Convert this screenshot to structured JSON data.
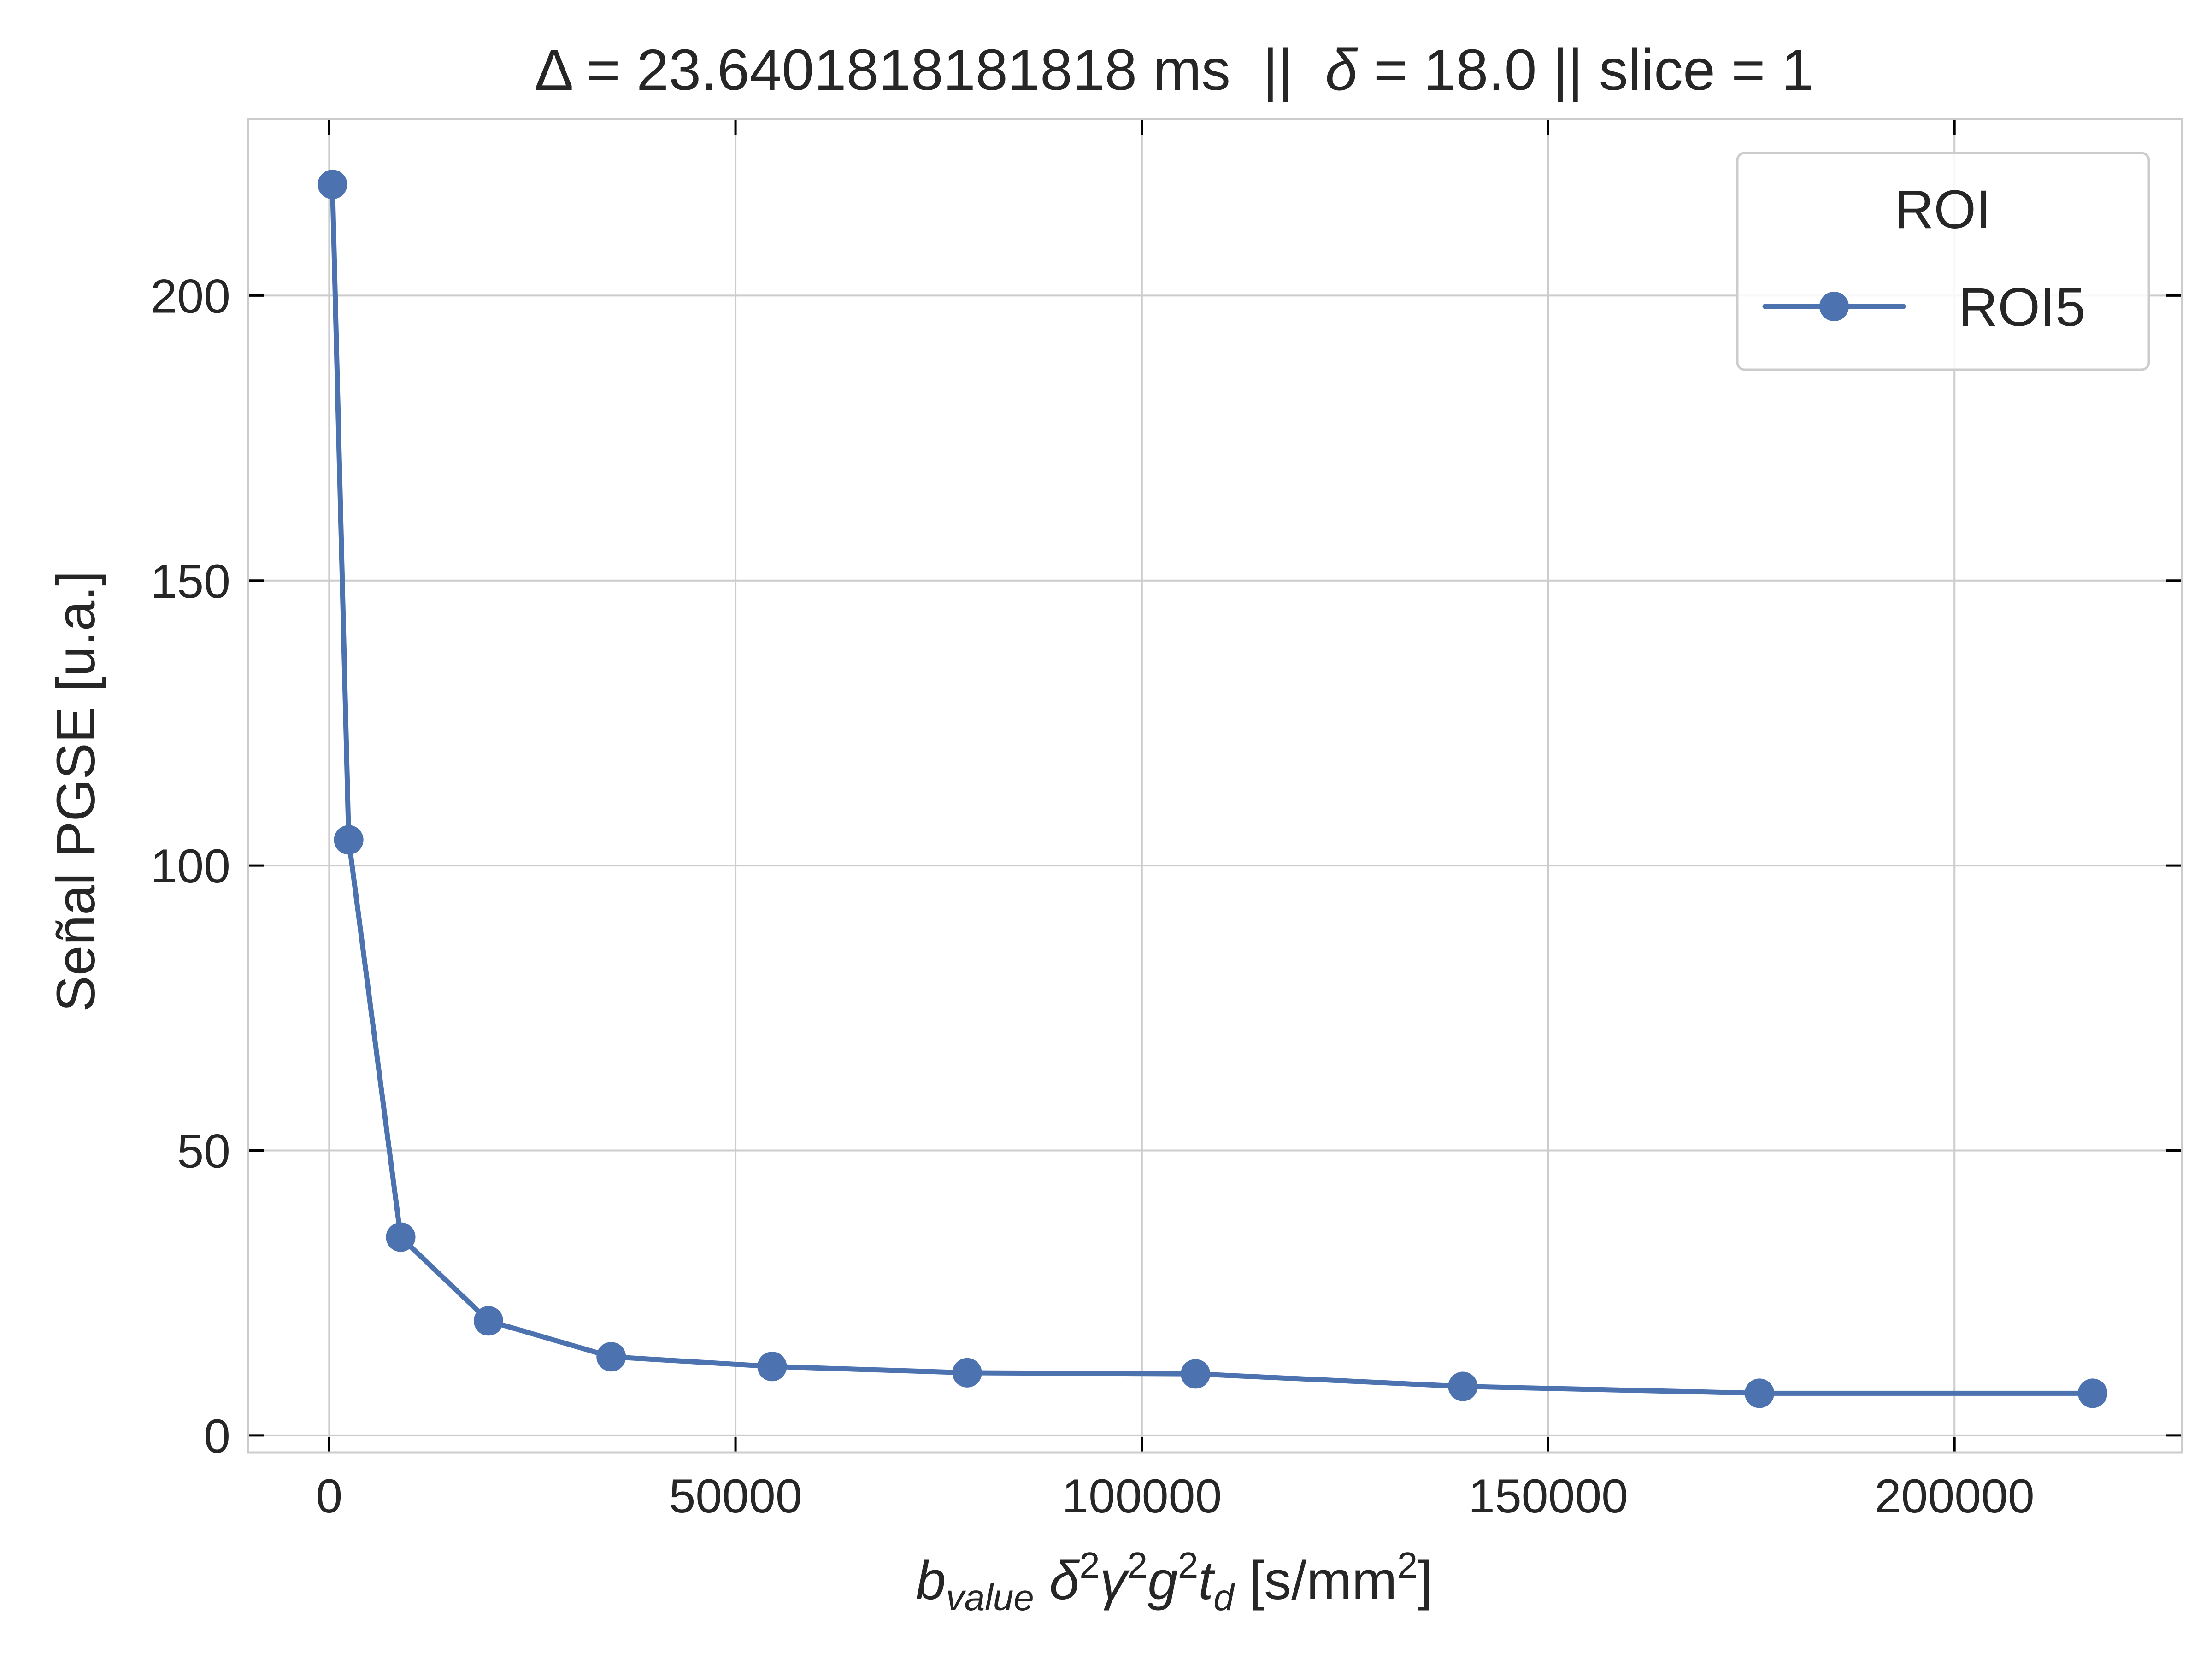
{
  "chart_data": {
    "type": "line",
    "title": "Δ = 23.6401818181818 ms  ||  δ = 18.0 || slice = 1",
    "title_parts": {
      "delta_cap": "Δ",
      "part1": " = 23.6401818181818 ms  ||  ",
      "delta_small": "δ",
      "part2": " = 18.0 || slice = 1"
    },
    "xlabel": "b_value δ²γ²g²t_d [s/mm²]",
    "xlabel_parts": {
      "b": "b",
      "b_sub": "value",
      "delta": "δ",
      "sup1": "2",
      "gamma": "γ",
      "sup2": "2",
      "g": "g",
      "sup3": "2",
      "t": "t",
      "t_sub": "d",
      "units_open": "[s/mm",
      "units_sup": "2",
      "units_close": "]"
    },
    "ylabel": "Señal PGSE [u.a.]",
    "xlim": [
      -10000,
      228000
    ],
    "ylim": [
      -3,
      231
    ],
    "xticks": [
      0,
      50000,
      100000,
      150000,
      200000
    ],
    "xtick_labels": [
      "0",
      "50000",
      "100000",
      "150000",
      "200000"
    ],
    "yticks": [
      0,
      50,
      100,
      150,
      200
    ],
    "ytick_labels": [
      "0",
      "50",
      "100",
      "150",
      "200"
    ],
    "grid": true,
    "legend": {
      "title": "ROI",
      "placement": "top-right"
    },
    "series": [
      {
        "name": "ROI5",
        "color": "#4c72b0",
        "marker": "circle",
        "x": [
          400,
          2400,
          8800,
          19600,
          34700,
          54500,
          78500,
          106600,
          139500,
          176000,
          217000
        ],
        "y": [
          219.5,
          104.5,
          34.8,
          20.1,
          13.8,
          12.1,
          11.0,
          10.8,
          8.6,
          7.4,
          7.4
        ]
      }
    ]
  }
}
